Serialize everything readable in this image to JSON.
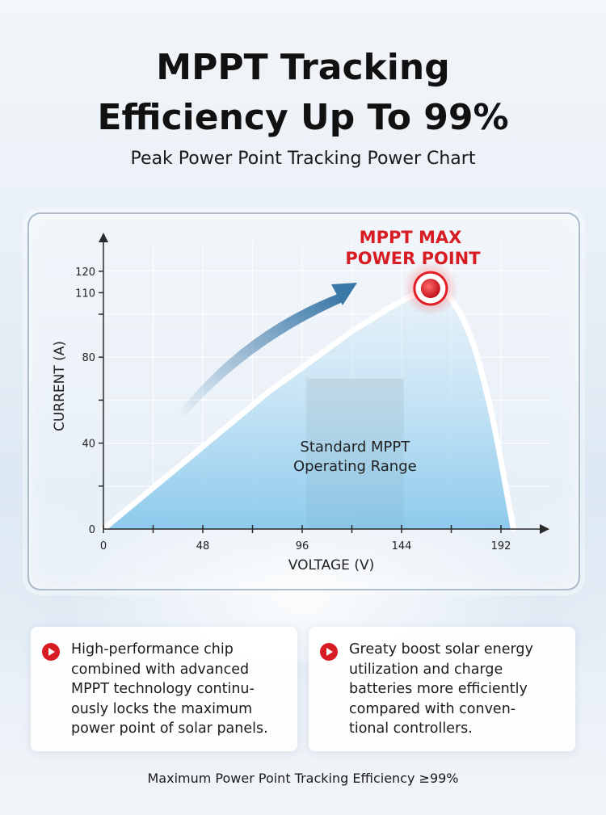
{
  "header": {
    "title_line1": "MPPT Tracking",
    "title_line2": "Efficiency Up To 99%",
    "subtitle": "Peak Power Point Tracking Power Chart"
  },
  "chart_data": {
    "type": "line",
    "xlabel": "VOLTAGE (V)",
    "ylabel": "CURRENT (A)",
    "xlim": [
      0,
      210
    ],
    "ylim": [
      0,
      130
    ],
    "x_ticks": [
      0,
      48,
      96,
      144,
      192
    ],
    "x_minor_ticks": [
      24,
      72,
      120,
      168
    ],
    "y_ticks": [
      0,
      40,
      80,
      110,
      120
    ],
    "y_minor_ticks": [
      20,
      60,
      100
    ],
    "grid": true,
    "series": [
      {
        "x": [
          0,
          10,
          20,
          30,
          40,
          50,
          60,
          70,
          80,
          90,
          100,
          110,
          120,
          130,
          140,
          150,
          155,
          160,
          165,
          170,
          175,
          180,
          185,
          190,
          195,
          198
        ],
        "y": [
          0,
          8,
          16,
          24,
          32,
          40,
          48,
          56,
          64,
          71,
          78,
          85,
          92,
          98,
          104,
          109,
          111,
          112,
          110,
          104,
          95,
          82,
          64,
          42,
          16,
          0
        ]
      }
    ],
    "max_power_point": {
      "x": 158,
      "y": 112
    },
    "operating_range": {
      "x": [
        98,
        145
      ]
    },
    "annotations": {
      "mpp_label_line1": "MPPT MAX",
      "mpp_label_line2": "POWER POINT",
      "range_label_line1": "Standard MPPT",
      "range_label_line2": "Operating Range"
    },
    "colors": {
      "curve": "#ffffff",
      "fill_top": "#bfe0f4",
      "mpp": "#e01e24",
      "arrow": "#3a78a8",
      "range": "#c8c8c8"
    }
  },
  "features": [
    {
      "icon": "play-arrow-icon",
      "lines": [
        "High-performance chip",
        "combined with advanced",
        "MPPT technology continu-",
        "ously locks the maximum",
        "power point of solar panels."
      ]
    },
    {
      "icon": "play-arrow-icon",
      "lines": [
        "Greaty boost solar energy",
        "utilization and charge",
        "batteries more efficiently",
        "compared with conven-",
        "tional controllers."
      ]
    }
  ],
  "footer": {
    "text": "Maximum Power Point Tracking Efficiency ≥99%"
  }
}
